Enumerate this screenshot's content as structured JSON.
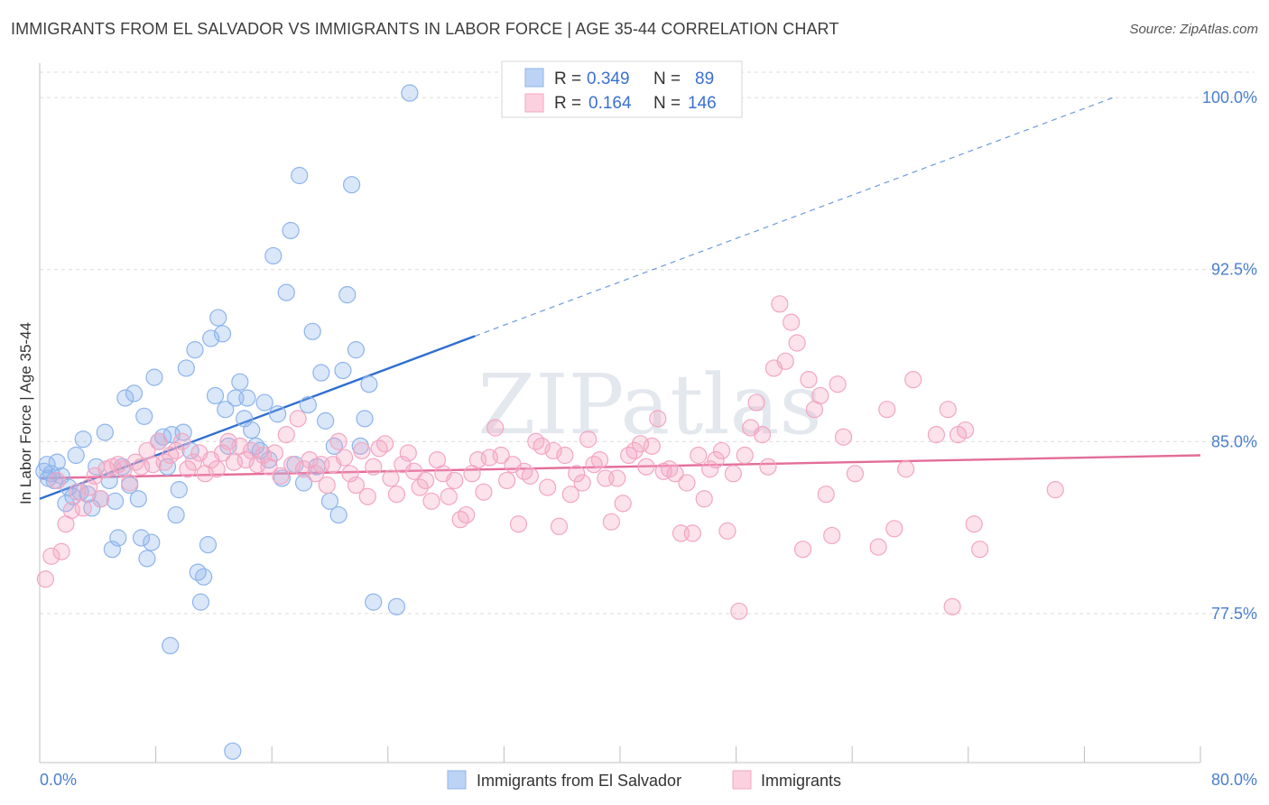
{
  "title": "IMMIGRANTS FROM EL SALVADOR VS IMMIGRANTS IN LABOR FORCE | AGE 35-44 CORRELATION CHART",
  "source": "Source: ZipAtlas.com",
  "watermark": "ZIPatlas",
  "chart_data": {
    "type": "scatter",
    "xlabel": "",
    "ylabel": "In Labor Force | Age 35-44",
    "xlim": [
      0,
      80
    ],
    "ylim": [
      71,
      101.5
    ],
    "x_tick_labels": [
      "0.0%",
      "80.0%"
    ],
    "y_ticks": [
      77.5,
      85.0,
      92.5,
      100.0
    ],
    "y_tick_labels": [
      "77.5%",
      "85.0%",
      "92.5%",
      "100.0%"
    ],
    "grid": true,
    "legend": {
      "placement": "top-center",
      "entries": [
        {
          "r_label": "R =",
          "r_value": "0.349",
          "n_label": "N =",
          "n_value": "89"
        },
        {
          "r_label": "R =",
          "r_value": "0.164",
          "n_label": "N =",
          "n_value": "146"
        }
      ]
    },
    "series": [
      {
        "name": "Immigrants from El Salvador",
        "color": "#8db4ec",
        "line_color": "#2f6fd0",
        "trend": {
          "x0": 0,
          "y0": 82.5,
          "x1": 30,
          "y1": 89.6,
          "dashed_to_x": 74,
          "dashed_to_y": 100.0
        },
        "points": [
          [
            0.3,
            83.7
          ],
          [
            0.5,
            84.0
          ],
          [
            0.6,
            83.4
          ],
          [
            0.8,
            83.6
          ],
          [
            1.0,
            83.3
          ],
          [
            1.2,
            84.1
          ],
          [
            1.5,
            83.5
          ],
          [
            1.8,
            82.3
          ],
          [
            2.0,
            83.0
          ],
          [
            2.3,
            82.6
          ],
          [
            2.5,
            84.4
          ],
          [
            2.8,
            82.8
          ],
          [
            3.0,
            85.1
          ],
          [
            3.3,
            82.7
          ],
          [
            3.6,
            82.1
          ],
          [
            3.9,
            83.9
          ],
          [
            4.2,
            82.5
          ],
          [
            4.5,
            85.4
          ],
          [
            4.8,
            83.3
          ],
          [
            5.0,
            80.3
          ],
          [
            5.2,
            82.4
          ],
          [
            5.4,
            80.8
          ],
          [
            5.7,
            83.9
          ],
          [
            5.9,
            86.9
          ],
          [
            6.2,
            83.1
          ],
          [
            6.5,
            87.1
          ],
          [
            6.8,
            82.5
          ],
          [
            7.0,
            80.8
          ],
          [
            7.2,
            86.1
          ],
          [
            7.4,
            79.9
          ],
          [
            7.7,
            80.6
          ],
          [
            7.9,
            87.8
          ],
          [
            8.2,
            85.0
          ],
          [
            8.5,
            85.2
          ],
          [
            8.8,
            83.9
          ],
          [
            9.1,
            85.3
          ],
          [
            9.4,
            81.8
          ],
          [
            9.6,
            82.9
          ],
          [
            9.9,
            85.4
          ],
          [
            10.1,
            88.2
          ],
          [
            10.4,
            84.6
          ],
          [
            10.7,
            89.0
          ],
          [
            10.9,
            79.3
          ],
          [
            11.1,
            78.0
          ],
          [
            11.3,
            79.1
          ],
          [
            11.6,
            80.5
          ],
          [
            11.8,
            89.5
          ],
          [
            12.1,
            87.0
          ],
          [
            12.3,
            90.4
          ],
          [
            12.6,
            89.7
          ],
          [
            12.8,
            86.4
          ],
          [
            13.0,
            84.8
          ],
          [
            13.3,
            71.5
          ],
          [
            13.5,
            86.9
          ],
          [
            13.8,
            87.6
          ],
          [
            14.1,
            86.0
          ],
          [
            14.3,
            86.9
          ],
          [
            14.6,
            85.5
          ],
          [
            14.9,
            84.8
          ],
          [
            15.2,
            84.6
          ],
          [
            15.5,
            86.7
          ],
          [
            15.8,
            84.2
          ],
          [
            16.1,
            93.1
          ],
          [
            16.4,
            86.2
          ],
          [
            16.7,
            83.4
          ],
          [
            17.0,
            91.5
          ],
          [
            17.3,
            94.2
          ],
          [
            17.6,
            84.0
          ],
          [
            17.9,
            96.6
          ],
          [
            18.2,
            83.2
          ],
          [
            18.5,
            86.6
          ],
          [
            18.8,
            89.8
          ],
          [
            19.1,
            83.9
          ],
          [
            19.4,
            88.0
          ],
          [
            19.7,
            85.9
          ],
          [
            20.0,
            82.4
          ],
          [
            20.3,
            84.8
          ],
          [
            20.6,
            81.8
          ],
          [
            20.9,
            88.1
          ],
          [
            21.2,
            91.4
          ],
          [
            21.5,
            96.2
          ],
          [
            21.8,
            89.0
          ],
          [
            22.1,
            84.8
          ],
          [
            22.4,
            86.0
          ],
          [
            22.7,
            87.5
          ],
          [
            23.0,
            78.0
          ],
          [
            24.6,
            77.8
          ],
          [
            25.5,
            100.2
          ],
          [
            9.0,
            76.1
          ]
        ]
      },
      {
        "name": "Immigrants",
        "color": "#f3a6c2",
        "line_color": "#e36d98",
        "trend": {
          "x0": 0,
          "y0": 83.4,
          "x1": 80,
          "y1": 84.4
        },
        "points": [
          [
            0.4,
            79.0
          ],
          [
            0.8,
            80.0
          ],
          [
            1.2,
            83.3
          ],
          [
            1.5,
            80.2
          ],
          [
            1.8,
            81.4
          ],
          [
            2.2,
            82.0
          ],
          [
            2.6,
            82.8
          ],
          [
            3.0,
            82.1
          ],
          [
            3.4,
            83.0
          ],
          [
            3.8,
            83.5
          ],
          [
            4.2,
            82.5
          ],
          [
            4.6,
            83.8
          ],
          [
            5.0,
            83.9
          ],
          [
            5.4,
            84.0
          ],
          [
            5.8,
            83.8
          ],
          [
            6.2,
            83.2
          ],
          [
            6.6,
            84.1
          ],
          [
            7.0,
            83.9
          ],
          [
            7.4,
            84.6
          ],
          [
            7.8,
            84.0
          ],
          [
            8.2,
            85.0
          ],
          [
            8.6,
            84.1
          ],
          [
            9.0,
            84.4
          ],
          [
            9.4,
            84.6
          ],
          [
            9.8,
            85.0
          ],
          [
            10.2,
            83.8
          ],
          [
            10.6,
            84.1
          ],
          [
            11.0,
            84.5
          ],
          [
            11.4,
            83.6
          ],
          [
            11.8,
            84.2
          ],
          [
            12.2,
            83.8
          ],
          [
            12.6,
            84.5
          ],
          [
            13.0,
            85.0
          ],
          [
            13.4,
            84.1
          ],
          [
            13.8,
            84.8
          ],
          [
            14.2,
            84.2
          ],
          [
            14.6,
            84.6
          ],
          [
            15.0,
            84.0
          ],
          [
            15.4,
            84.4
          ],
          [
            15.8,
            83.9
          ],
          [
            16.2,
            84.5
          ],
          [
            16.6,
            83.5
          ],
          [
            17.0,
            85.3
          ],
          [
            17.4,
            84.0
          ],
          [
            17.8,
            86.0
          ],
          [
            18.2,
            83.8
          ],
          [
            18.6,
            84.2
          ],
          [
            19.0,
            83.6
          ],
          [
            19.4,
            84.0
          ],
          [
            19.8,
            83.1
          ],
          [
            20.2,
            84.0
          ],
          [
            20.6,
            85.0
          ],
          [
            21.0,
            84.3
          ],
          [
            21.4,
            83.6
          ],
          [
            21.8,
            83.1
          ],
          [
            22.2,
            84.6
          ],
          [
            22.6,
            82.6
          ],
          [
            23.0,
            83.9
          ],
          [
            23.4,
            84.7
          ],
          [
            23.8,
            84.9
          ],
          [
            24.2,
            83.4
          ],
          [
            24.6,
            82.7
          ],
          [
            25.0,
            84.0
          ],
          [
            25.4,
            84.5
          ],
          [
            25.8,
            83.7
          ],
          [
            26.2,
            83.0
          ],
          [
            26.6,
            83.3
          ],
          [
            27.0,
            82.4
          ],
          [
            27.4,
            84.2
          ],
          [
            27.8,
            83.6
          ],
          [
            28.2,
            82.6
          ],
          [
            28.6,
            83.3
          ],
          [
            29.0,
            81.6
          ],
          [
            29.4,
            81.8
          ],
          [
            29.8,
            83.6
          ],
          [
            30.2,
            84.2
          ],
          [
            30.6,
            82.8
          ],
          [
            31.0,
            84.3
          ],
          [
            31.4,
            85.6
          ],
          [
            31.8,
            84.4
          ],
          [
            32.2,
            83.3
          ],
          [
            32.6,
            84.0
          ],
          [
            33.0,
            81.4
          ],
          [
            33.4,
            83.7
          ],
          [
            33.8,
            83.5
          ],
          [
            34.2,
            85.0
          ],
          [
            34.6,
            84.8
          ],
          [
            35.0,
            83.0
          ],
          [
            35.4,
            84.6
          ],
          [
            35.8,
            81.3
          ],
          [
            36.2,
            84.4
          ],
          [
            36.6,
            82.7
          ],
          [
            37.0,
            83.6
          ],
          [
            37.4,
            83.2
          ],
          [
            37.8,
            85.1
          ],
          [
            38.2,
            84.0
          ],
          [
            38.6,
            84.2
          ],
          [
            39.0,
            83.4
          ],
          [
            39.4,
            81.5
          ],
          [
            39.8,
            83.4
          ],
          [
            40.2,
            82.3
          ],
          [
            40.6,
            84.4
          ],
          [
            41.0,
            84.6
          ],
          [
            41.4,
            84.9
          ],
          [
            41.8,
            83.9
          ],
          [
            42.2,
            84.8
          ],
          [
            42.6,
            86.0
          ],
          [
            43.0,
            83.7
          ],
          [
            43.4,
            83.8
          ],
          [
            43.8,
            83.6
          ],
          [
            44.2,
            81.0
          ],
          [
            44.6,
            83.2
          ],
          [
            45.0,
            81.0
          ],
          [
            45.4,
            84.4
          ],
          [
            45.8,
            82.5
          ],
          [
            46.2,
            83.8
          ],
          [
            46.6,
            84.2
          ],
          [
            47.0,
            84.6
          ],
          [
            47.4,
            81.1
          ],
          [
            47.8,
            83.6
          ],
          [
            48.2,
            77.6
          ],
          [
            48.6,
            84.4
          ],
          [
            49.0,
            85.6
          ],
          [
            49.4,
            86.7
          ],
          [
            49.8,
            85.3
          ],
          [
            50.2,
            83.9
          ],
          [
            50.6,
            88.2
          ],
          [
            51.0,
            91.0
          ],
          [
            51.4,
            88.5
          ],
          [
            51.8,
            90.2
          ],
          [
            52.2,
            89.3
          ],
          [
            52.6,
            80.3
          ],
          [
            53.0,
            87.7
          ],
          [
            53.4,
            86.4
          ],
          [
            53.8,
            87.0
          ],
          [
            54.2,
            82.7
          ],
          [
            54.6,
            80.9
          ],
          [
            55.0,
            87.5
          ],
          [
            55.4,
            85.2
          ],
          [
            56.2,
            83.6
          ],
          [
            57.8,
            80.4
          ],
          [
            58.4,
            86.4
          ],
          [
            58.9,
            81.2
          ],
          [
            59.7,
            83.8
          ],
          [
            60.2,
            87.7
          ],
          [
            61.8,
            85.3
          ],
          [
            62.6,
            86.4
          ],
          [
            62.9,
            77.8
          ],
          [
            63.3,
            85.3
          ],
          [
            63.8,
            85.5
          ],
          [
            64.4,
            81.4
          ],
          [
            64.8,
            80.3
          ],
          [
            70.0,
            82.9
          ]
        ]
      }
    ],
    "x_axis_ticks_count": 11
  },
  "bottom_legend": [
    "Immigrants from El Salvador",
    "Immigrants"
  ]
}
